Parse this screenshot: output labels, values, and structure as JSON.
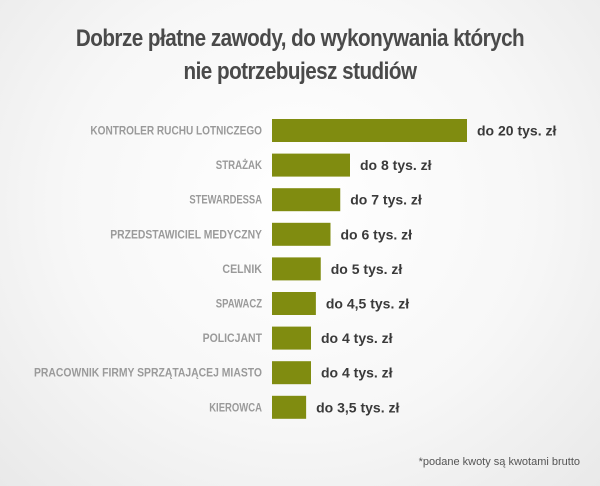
{
  "title_lines": [
    "Dobrze płatne zawody, do wykonywania których",
    "nie potrzebujesz studiów"
  ],
  "footnote": "*podane kwoty są kwotami brutto",
  "colors": {
    "bar": "#808c10",
    "category_label": "#9a9a9a",
    "value_label": "#3a3a3a"
  },
  "chart_data": {
    "type": "bar",
    "orientation": "horizontal",
    "title": "Dobrze płatne zawody, do wykonywania których nie potrzebujesz studiów",
    "categories": [
      "KONTROLER RUCHU LOTNICZEGO",
      "STRAŻAK",
      "STEWARDESSA",
      "PRZEDSTAWICIEL MEDYCZNY",
      "CELNIK",
      "SPAWACZ",
      "POLICJANT",
      "PRACOWNIK FIRMY SPRZĄTAJĄCEJ MIASTO",
      "KIEROWCA"
    ],
    "values": [
      20,
      8,
      7,
      6,
      5,
      4.5,
      4,
      4,
      3.5
    ],
    "value_labels": [
      "do 20 tys. zł",
      "do 8 tys. zł",
      "do 7 tys. zł",
      "do 6 tys. zł",
      "do 5 tys. zł",
      "do 4,5 tys. zł",
      "do 4 tys. zł",
      "do 4 tys. zł",
      "do 3,5 tys. zł"
    ],
    "unit": "tys. zł",
    "grid": false,
    "legend": "none"
  }
}
